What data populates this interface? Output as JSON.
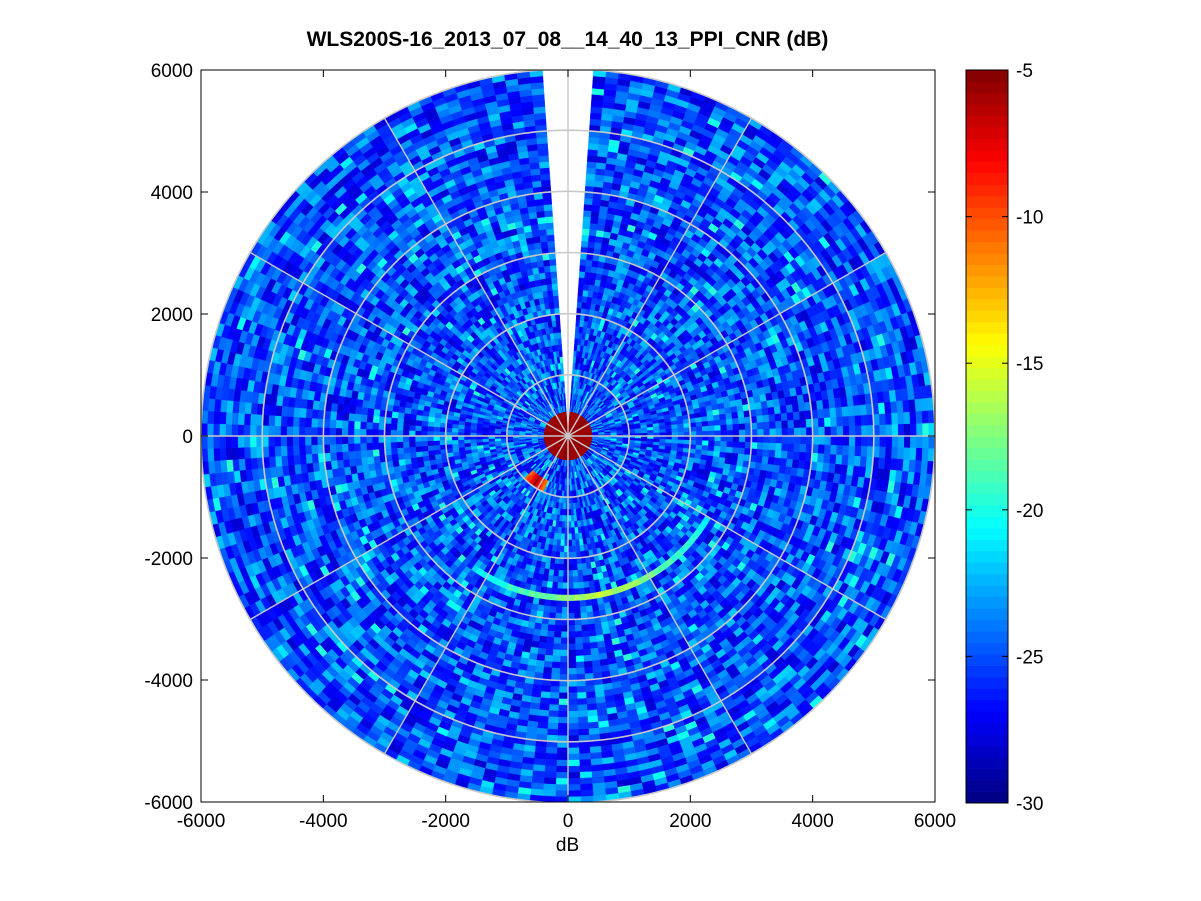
{
  "chart_data": {
    "type": "heatmap",
    "subtype": "polar-ppi",
    "title": "WLS200S-16_2013_07_08__14_40_13_PPI_CNR (dB)",
    "xlabel": "dB",
    "ylabel": "",
    "xlim": [
      -6000,
      6000
    ],
    "ylim": [
      -6000,
      6000
    ],
    "xticks": [
      "-6000",
      "-4000",
      "-2000",
      "0",
      "2000",
      "4000",
      "6000"
    ],
    "yticks": [
      "6000",
      "4000",
      "2000",
      "0",
      "-2000",
      "-4000",
      "-6000"
    ],
    "max_range": 6000,
    "range_rings": [
      1000,
      2000,
      3000,
      4000,
      5000,
      6000
    ],
    "spokes_deg": [
      0,
      30,
      60,
      90,
      120,
      150,
      180,
      210,
      240,
      270,
      300,
      330
    ],
    "missing_sector_deg": [
      356,
      4
    ],
    "background_cnr_db": [
      -28,
      -22
    ],
    "features": [
      {
        "name": "near-field",
        "range": [
          0,
          400
        ],
        "cnr_db": -5
      },
      {
        "name": "inner-arc",
        "range": 900,
        "bearing_deg": [
          205,
          225
        ],
        "cnr_db": -6
      },
      {
        "name": "outer-arc",
        "range": 2650,
        "bearing_deg": [
          120,
          215
        ],
        "cnr_db": -16
      }
    ],
    "colorbar": {
      "colormap": "jet",
      "min": -30,
      "max": -5,
      "ticks": [
        "-5",
        "-10",
        "-15",
        "-20",
        "-25",
        "-30"
      ]
    },
    "grid": true
  }
}
